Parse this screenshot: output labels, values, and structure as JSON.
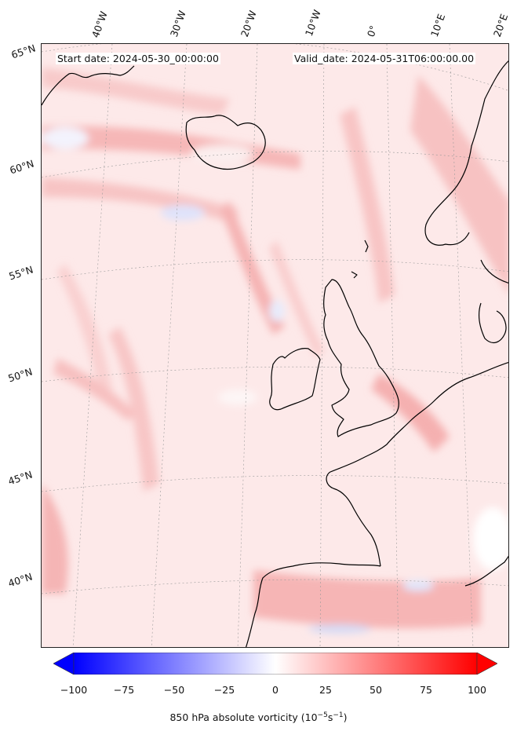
{
  "map": {
    "start_date": "Start date: 2024-05-30_00:00:00",
    "valid_date": "Valid_date: 2024-05-31T06:00:00.00",
    "lon_labels": [
      "40°W",
      "30°W",
      "20°W",
      "10°W",
      "0°",
      "10°E",
      "20°E"
    ],
    "lat_labels": [
      "65°N",
      "60°N",
      "55°N",
      "50°N",
      "45°N",
      "40°N"
    ],
    "background_color": "#fde9e9",
    "coastline_color": "#000000",
    "gridline_color": "#9a9a9a"
  },
  "colorbar": {
    "ticks": [
      "−100",
      "−75",
      "−50",
      "−25",
      "0",
      "25",
      "50",
      "75",
      "100"
    ],
    "min": -100,
    "max": 100,
    "cmap": "bwr",
    "extend": "both",
    "label_prefix": "850 hPa absolute vorticity (10",
    "label_exp1": "−5",
    "label_mid": "s",
    "label_exp2": "−1",
    "label_suffix": ")"
  }
}
